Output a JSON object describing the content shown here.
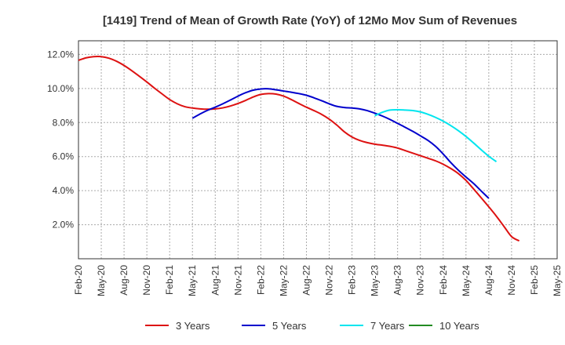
{
  "chart_data": {
    "type": "line",
    "title": "[1419]  Trend of Mean of Growth Rate (YoY) of 12Mo Mov Sum of Revenues",
    "xlabel": "",
    "ylabel": "",
    "ylim": [
      0.0,
      12.8
    ],
    "y_ticks": [
      2.0,
      4.0,
      6.0,
      8.0,
      10.0,
      12.0
    ],
    "y_tick_labels": [
      "2.0%",
      "4.0%",
      "6.0%",
      "8.0%",
      "10.0%",
      "12.0%"
    ],
    "x_ticks": [
      "Feb-20",
      "May-20",
      "Aug-20",
      "Nov-20",
      "Feb-21",
      "May-21",
      "Aug-21",
      "Nov-21",
      "Feb-22",
      "May-22",
      "Aug-22",
      "Nov-22",
      "Feb-23",
      "May-23",
      "Aug-23",
      "Nov-23",
      "Feb-24",
      "May-24",
      "Aug-24",
      "Nov-24",
      "Feb-25",
      "May-25"
    ],
    "grid": true,
    "legend_position": "bottom",
    "series": [
      {
        "name": "3 Years",
        "color": "#dd1111",
        "points": [
          [
            "Feb-20",
            11.65
          ],
          [
            "Mar-20",
            11.8
          ],
          [
            "Apr-20",
            11.87
          ],
          [
            "May-20",
            11.87
          ],
          [
            "Jun-20",
            11.78
          ],
          [
            "Jul-20",
            11.6
          ],
          [
            "Aug-20",
            11.35
          ],
          [
            "Sep-20",
            11.05
          ],
          [
            "Oct-20",
            10.72
          ],
          [
            "Nov-20",
            10.38
          ],
          [
            "Dec-20",
            10.02
          ],
          [
            "Jan-21",
            9.68
          ],
          [
            "Feb-21",
            9.35
          ],
          [
            "Mar-21",
            9.1
          ],
          [
            "Apr-21",
            8.93
          ],
          [
            "May-21",
            8.85
          ],
          [
            "Jun-21",
            8.8
          ],
          [
            "Jul-21",
            8.78
          ],
          [
            "Aug-21",
            8.8
          ],
          [
            "Sep-21",
            8.86
          ],
          [
            "Oct-21",
            8.97
          ],
          [
            "Nov-21",
            9.12
          ],
          [
            "Dec-21",
            9.3
          ],
          [
            "Jan-22",
            9.5
          ],
          [
            "Feb-22",
            9.65
          ],
          [
            "Mar-22",
            9.7
          ],
          [
            "Apr-22",
            9.67
          ],
          [
            "May-22",
            9.55
          ],
          [
            "Jun-22",
            9.35
          ],
          [
            "Jul-22",
            9.12
          ],
          [
            "Aug-22",
            8.9
          ],
          [
            "Sep-22",
            8.7
          ],
          [
            "Oct-22",
            8.48
          ],
          [
            "Nov-22",
            8.2
          ],
          [
            "Dec-22",
            7.85
          ],
          [
            "Jan-23",
            7.45
          ],
          [
            "Feb-23",
            7.15
          ],
          [
            "Mar-23",
            6.95
          ],
          [
            "Apr-23",
            6.82
          ],
          [
            "May-23",
            6.73
          ],
          [
            "Jun-23",
            6.67
          ],
          [
            "Jul-23",
            6.6
          ],
          [
            "Aug-23",
            6.5
          ],
          [
            "Sep-23",
            6.35
          ],
          [
            "Oct-23",
            6.2
          ],
          [
            "Nov-23",
            6.05
          ],
          [
            "Dec-23",
            5.9
          ],
          [
            "Jan-24",
            5.75
          ],
          [
            "Feb-24",
            5.55
          ],
          [
            "Mar-24",
            5.3
          ],
          [
            "Apr-24",
            5.0
          ],
          [
            "May-24",
            4.6
          ],
          [
            "Jun-24",
            4.1
          ],
          [
            "Jul-24",
            3.58
          ],
          [
            "Aug-24",
            3.05
          ],
          [
            "Sep-24",
            2.5
          ],
          [
            "Oct-24",
            1.9
          ],
          [
            "Nov-24",
            1.3
          ],
          [
            "Dec-24",
            1.05
          ]
        ]
      },
      {
        "name": "5 Years",
        "color": "#0000cc",
        "points": [
          [
            "May-21",
            8.25
          ],
          [
            "Jun-21",
            8.5
          ],
          [
            "Jul-21",
            8.72
          ],
          [
            "Aug-21",
            8.9
          ],
          [
            "Sep-21",
            9.1
          ],
          [
            "Oct-21",
            9.32
          ],
          [
            "Nov-21",
            9.55
          ],
          [
            "Dec-21",
            9.75
          ],
          [
            "Jan-22",
            9.9
          ],
          [
            "Feb-22",
            9.97
          ],
          [
            "Mar-22",
            9.98
          ],
          [
            "Apr-22",
            9.92
          ],
          [
            "May-22",
            9.85
          ],
          [
            "Jun-22",
            9.78
          ],
          [
            "Jul-22",
            9.7
          ],
          [
            "Aug-22",
            9.6
          ],
          [
            "Sep-22",
            9.45
          ],
          [
            "Oct-22",
            9.28
          ],
          [
            "Nov-22",
            9.1
          ],
          [
            "Dec-22",
            8.95
          ],
          [
            "Jan-23",
            8.88
          ],
          [
            "Feb-23",
            8.85
          ],
          [
            "Mar-23",
            8.8
          ],
          [
            "Apr-23",
            8.7
          ],
          [
            "May-23",
            8.55
          ],
          [
            "Jun-23",
            8.38
          ],
          [
            "Jul-23",
            8.18
          ],
          [
            "Aug-23",
            7.95
          ],
          [
            "Sep-23",
            7.72
          ],
          [
            "Oct-23",
            7.48
          ],
          [
            "Nov-23",
            7.22
          ],
          [
            "Dec-23",
            6.95
          ],
          [
            "Jan-24",
            6.6
          ],
          [
            "Feb-24",
            6.15
          ],
          [
            "Mar-24",
            5.65
          ],
          [
            "Apr-24",
            5.2
          ],
          [
            "May-24",
            4.8
          ],
          [
            "Jun-24",
            4.42
          ],
          [
            "Jul-24",
            3.98
          ],
          [
            "Aug-24",
            3.55
          ]
        ]
      },
      {
        "name": "7 Years",
        "color": "#00e5ee",
        "points": [
          [
            "May-23",
            8.4
          ],
          [
            "Jun-23",
            8.6
          ],
          [
            "Jul-23",
            8.73
          ],
          [
            "Aug-23",
            8.75
          ],
          [
            "Sep-23",
            8.73
          ],
          [
            "Oct-23",
            8.7
          ],
          [
            "Nov-23",
            8.62
          ],
          [
            "Dec-23",
            8.48
          ],
          [
            "Jan-24",
            8.3
          ],
          [
            "Feb-24",
            8.08
          ],
          [
            "Mar-24",
            7.82
          ],
          [
            "Apr-24",
            7.52
          ],
          [
            "May-24",
            7.18
          ],
          [
            "Jun-24",
            6.8
          ],
          [
            "Jul-24",
            6.4
          ],
          [
            "Aug-24",
            6.02
          ],
          [
            "Sep-24",
            5.7
          ]
        ]
      },
      {
        "name": "10 Years",
        "color": "#228b22",
        "points": []
      }
    ]
  }
}
